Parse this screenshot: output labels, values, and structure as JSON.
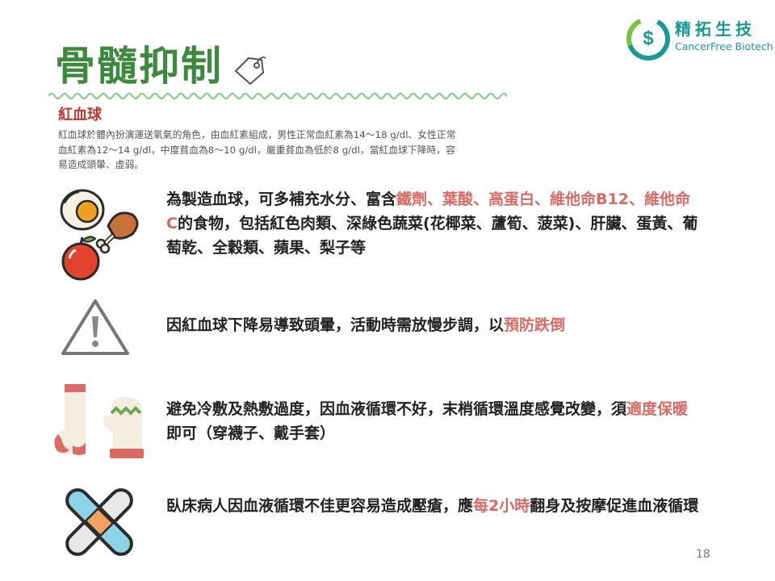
{
  "header": {
    "title": "骨髓抑制",
    "logo": {
      "name": "精拓生技",
      "english": "CancerFree Biotech"
    }
  },
  "rbc": {
    "heading": "紅血球",
    "description": "紅血球於體內扮演運送氧氣的角色，由血紅素組成，男性正常血紅素為14～18 g/dl、女性正常血紅素為12～14 g/dl，中度貧血為8～10 g/dl，嚴重貧血為低於8 g/dl，當紅血球下降時，容易造成頭暈、虛弱。"
  },
  "items": [
    {
      "icon": "food-icon",
      "parts": [
        {
          "t": "為製造血球，可多補充水分、富含"
        },
        {
          "t": "鐵劑、葉酸、高蛋白、維他命B12、維他命C",
          "hl": true
        },
        {
          "t": "的食物，包括紅色肉類、深綠色蔬菜(花椰菜、蘆筍、菠菜)、肝臟、蛋黃、葡萄乾、全穀類、蘋果、梨子等"
        }
      ]
    },
    {
      "icon": "warning-icon",
      "parts": [
        {
          "t": "因紅血球下降易導致頭暈，活動時需放慢步調，以"
        },
        {
          "t": "預防跌倒",
          "hl": true
        }
      ]
    },
    {
      "icon": "sock-mitten-icon",
      "parts": [
        {
          "t": "避免冷敷及熱敷過度，因血液循環不好，末梢循環溫度感覺改變，須"
        },
        {
          "t": "適度保暖",
          "hl": true
        },
        {
          "t": "即可（穿襪子、戴手套）"
        }
      ]
    },
    {
      "icon": "bandage-icon",
      "parts": [
        {
          "t": "臥床病人因血液循環不佳更容易造成壓瘡，應"
        },
        {
          "t": "每2小時",
          "hl": true
        },
        {
          "t": "翻身及按摩促進血液循環"
        }
      ]
    }
  ],
  "page_number": "18",
  "colors": {
    "title": "#3d8a3f",
    "heading": "#c0362c",
    "highlight": "#d96b64",
    "logo": "#1a9a96"
  }
}
